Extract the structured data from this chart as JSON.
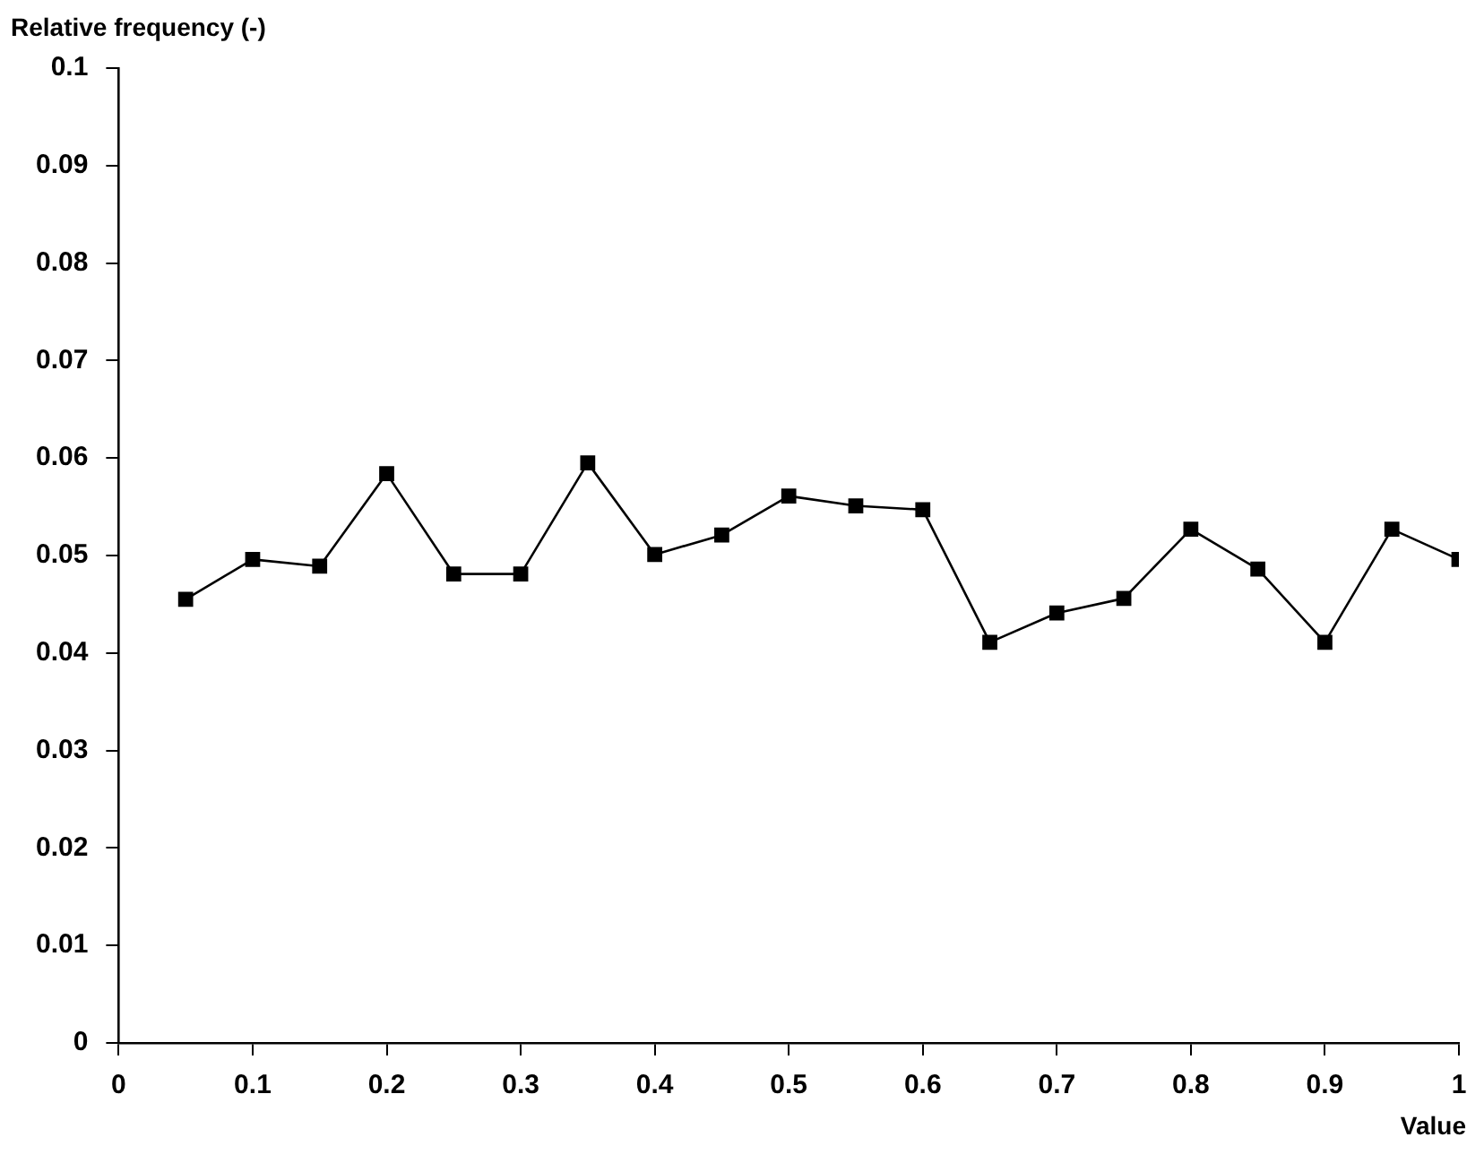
{
  "chart_data": {
    "type": "line",
    "ylabel": "Relative frequency (-)",
    "xlabel": "Value",
    "x": [
      0.05,
      0.1,
      0.15,
      0.2,
      0.25,
      0.3,
      0.35,
      0.4,
      0.45,
      0.5,
      0.55,
      0.6,
      0.65,
      0.7,
      0.75,
      0.8,
      0.85,
      0.9,
      0.95,
      1
    ],
    "series": [
      {
        "color": "#000000",
        "values": [
          0.0455,
          0.0496,
          0.0489,
          0.0584,
          0.0481,
          0.0481,
          0.0595,
          0.0501,
          0.0521,
          0.0561,
          0.0551,
          0.0547,
          0.0411,
          0.0441,
          0.0456,
          0.0527,
          0.0486,
          0.0411,
          0.0527,
          0.0496
        ]
      }
    ],
    "xlim": [
      0,
      1
    ],
    "xticks": [
      0,
      0.1,
      0.2,
      0.3,
      0.4,
      0.5,
      0.6,
      0.7,
      0.8,
      0.9,
      1
    ],
    "ylim": [
      0,
      0.1
    ],
    "yticks": [
      0,
      0.01,
      0.02,
      0.03,
      0.04,
      0.05,
      0.06,
      0.07,
      0.08,
      0.09,
      0.1
    ],
    "marker": "square",
    "line_style": "solid",
    "grid": false,
    "legend": false
  }
}
